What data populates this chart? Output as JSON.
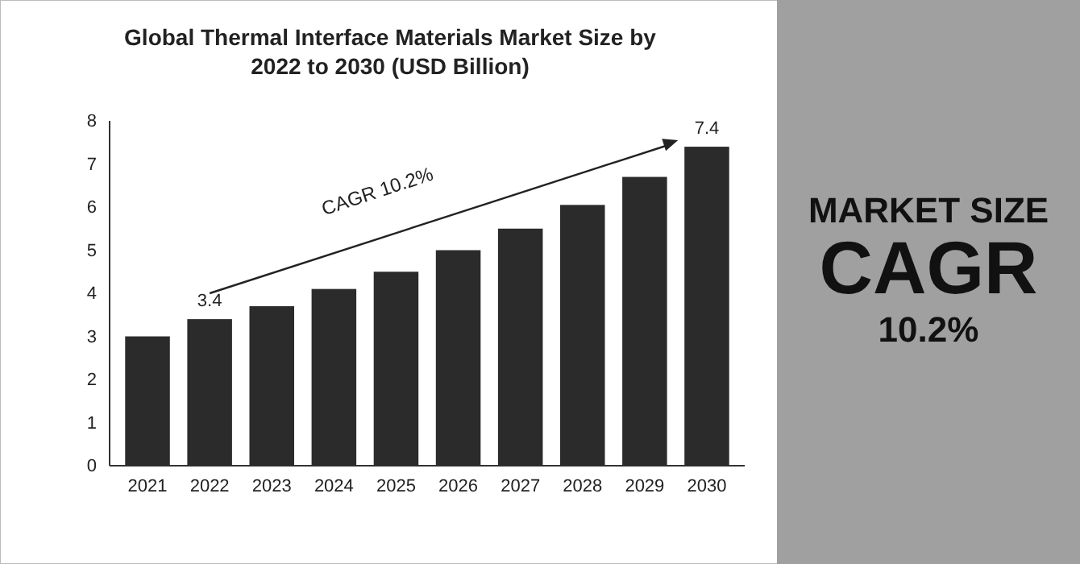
{
  "chart_data": {
    "type": "bar",
    "title": "Global Thermal Interface Materials Market Size by 2022 to 2030 (USD Billion)",
    "categories": [
      "2021",
      "2022",
      "2023",
      "2024",
      "2025",
      "2026",
      "2027",
      "2028",
      "2029",
      "2030"
    ],
    "values": [
      3.0,
      3.4,
      3.7,
      4.1,
      4.5,
      5.0,
      5.5,
      6.05,
      6.7,
      7.4
    ],
    "value_labels": [
      null,
      "3.4",
      null,
      null,
      null,
      null,
      null,
      null,
      null,
      "7.4"
    ],
    "color": "#2b2b2b",
    "ylim": [
      0,
      8
    ],
    "yticks": [
      0,
      1,
      2,
      3,
      4,
      5,
      6,
      7,
      8
    ],
    "grid": false,
    "annotations": [
      "CAGR 10.2%",
      "MARKET SIZE",
      "CAGR",
      "10.2%"
    ]
  }
}
